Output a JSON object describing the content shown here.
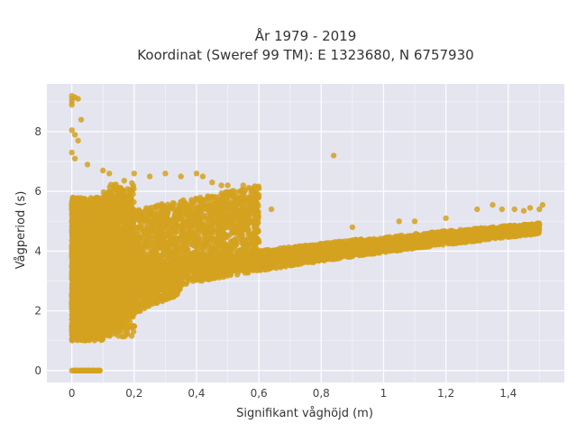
{
  "chart_data": {
    "type": "scatter",
    "title_line1": "År 1979 - 2019",
    "title_line2": "Koordinat (Sweref 99 TM): E 1323680, N 6757930",
    "xlabel": "Signifikant våghöjd (m)",
    "ylabel": "Vågperiod (s)",
    "xlim": [
      -0.08,
      1.58
    ],
    "ylim": [
      -0.4,
      9.6
    ],
    "x_ticks": [
      {
        "value": 0,
        "label": "0"
      },
      {
        "value": 0.2,
        "label": "0,2"
      },
      {
        "value": 0.4,
        "label": "0,4"
      },
      {
        "value": 0.6,
        "label": "0,6"
      },
      {
        "value": 0.8,
        "label": "0,8"
      },
      {
        "value": 1.0,
        "label": "1"
      },
      {
        "value": 1.2,
        "label": "1,2"
      },
      {
        "value": 1.4,
        "label": "1,4"
      }
    ],
    "y_ticks": [
      {
        "value": 0,
        "label": "0"
      },
      {
        "value": 2,
        "label": "2"
      },
      {
        "value": 4,
        "label": "4"
      },
      {
        "value": 6,
        "label": "6"
      },
      {
        "value": 8,
        "label": "8"
      }
    ],
    "grid": true,
    "marker_color": "#d4a21f",
    "plot_background": "#e5e5f0",
    "points_sample": [
      [
        0.0,
        9.2
      ],
      [
        0.0,
        9.1
      ],
      [
        0.0,
        9.0
      ],
      [
        0.0,
        8.9
      ],
      [
        0.01,
        9.15
      ],
      [
        0.02,
        9.1
      ],
      [
        0.03,
        8.4
      ],
      [
        0.0,
        8.05
      ],
      [
        0.01,
        7.9
      ],
      [
        0.02,
        7.7
      ],
      [
        0.0,
        7.3
      ],
      [
        0.01,
        7.1
      ],
      [
        0.05,
        6.9
      ],
      [
        0.1,
        6.7
      ],
      [
        0.12,
        6.6
      ],
      [
        0.2,
        6.6
      ],
      [
        0.25,
        6.5
      ],
      [
        0.3,
        6.6
      ],
      [
        0.35,
        6.5
      ],
      [
        0.4,
        6.6
      ],
      [
        0.42,
        6.5
      ],
      [
        0.45,
        6.3
      ],
      [
        0.48,
        6.2
      ],
      [
        0.5,
        6.2
      ],
      [
        0.55,
        6.2
      ],
      [
        0.6,
        6.1
      ],
      [
        0.57,
        5.7
      ],
      [
        0.64,
        5.4
      ],
      [
        0.84,
        7.2
      ],
      [
        0.47,
        4.7
      ],
      [
        0.5,
        4.1
      ],
      [
        0.6,
        4.3
      ],
      [
        0.9,
        4.8
      ],
      [
        1.05,
        5.0
      ],
      [
        1.1,
        5.0
      ],
      [
        1.2,
        5.1
      ],
      [
        1.3,
        5.4
      ],
      [
        1.35,
        5.55
      ],
      [
        1.38,
        5.4
      ],
      [
        1.42,
        5.4
      ],
      [
        1.45,
        5.35
      ],
      [
        1.47,
        5.45
      ],
      [
        1.5,
        5.4
      ],
      [
        1.51,
        5.55
      ],
      [
        0.0,
        0.0
      ],
      [
        0.02,
        0.0
      ],
      [
        0.04,
        0.0
      ],
      [
        0.06,
        0.0
      ],
      [
        0.08,
        0.0
      ],
      [
        0.09,
        0.0
      ]
    ]
  }
}
